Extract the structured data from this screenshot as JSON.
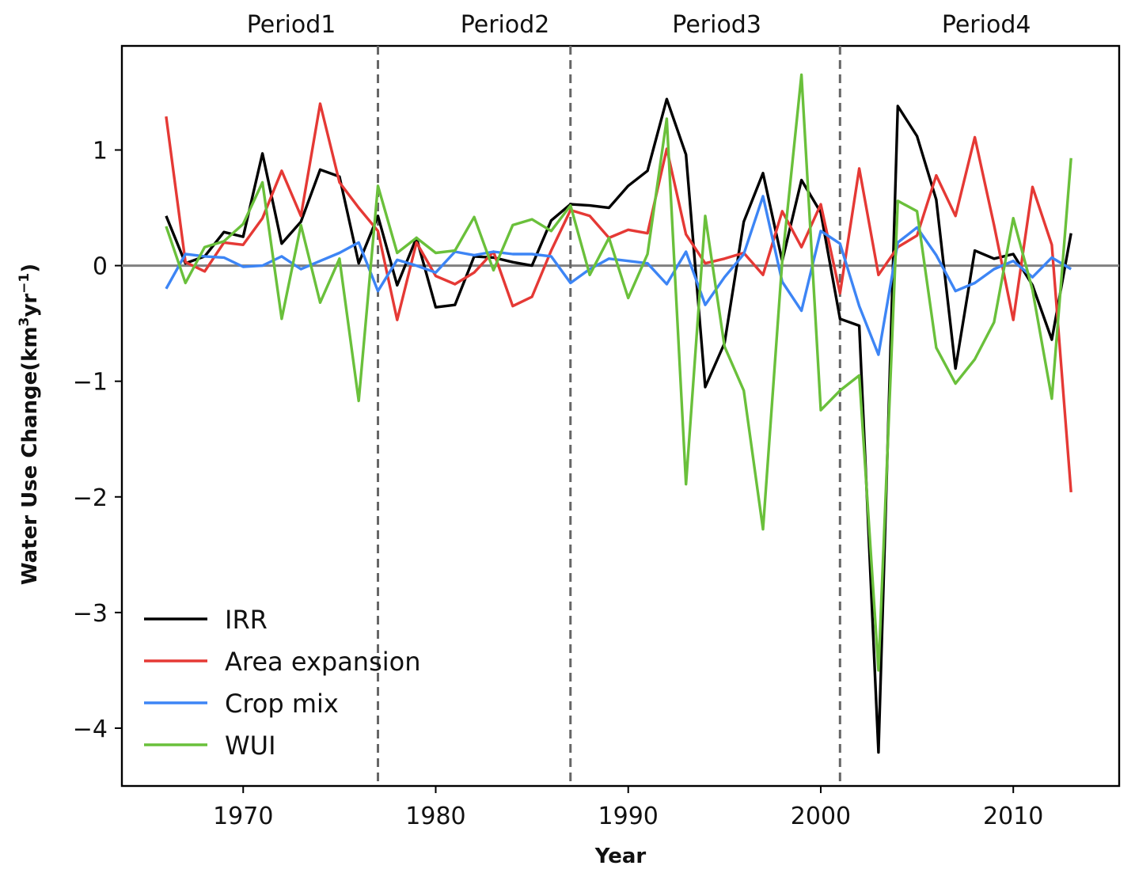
{
  "chart_data": {
    "type": "line",
    "title": "",
    "xlabel": "Year",
    "ylabel": "Water Use Change(km",
    "ylabel_sup1": "3",
    "ylabel_mid": "yr",
    "ylabel_sup2": "−1",
    "ylabel_end": ")",
    "xlim": [
      1963.7,
      2015.5
    ],
    "ylim": [
      -4.5,
      1.9
    ],
    "xticks": [
      1970,
      1980,
      1990,
      2000,
      2010
    ],
    "xtick_labels": [
      "1970",
      "1980",
      "1990",
      "2000",
      "2010"
    ],
    "yticks": [
      1,
      0,
      -1,
      -2,
      -3,
      -4
    ],
    "ytick_labels": [
      "1",
      "0",
      "−1",
      "−2",
      "−3",
      "−4"
    ],
    "zero_line": 0,
    "period_dividers": [
      1977,
      1987,
      2001
    ],
    "periods": [
      {
        "label": "Period1",
        "x": 1972.5
      },
      {
        "label": "Period2",
        "x": 1983.6
      },
      {
        "label": "Period3",
        "x": 1994.6
      },
      {
        "label": "Period4",
        "x": 2008.6
      }
    ],
    "legend_position": "lower-left",
    "x": [
      1966,
      1967,
      1968,
      1969,
      1970,
      1971,
      1972,
      1973,
      1974,
      1975,
      1976,
      1977,
      1978,
      1979,
      1980,
      1981,
      1982,
      1983,
      1984,
      1985,
      1986,
      1987,
      1988,
      1989,
      1990,
      1991,
      1992,
      1993,
      1994,
      1995,
      1996,
      1997,
      1998,
      1999,
      2000,
      2001,
      2002,
      2003,
      2004,
      2005,
      2006,
      2007,
      2008,
      2009,
      2010,
      2011,
      2012,
      2013
    ],
    "series": [
      {
        "name": "IRR",
        "color": "#000000",
        "values": [
          0.43,
          0.02,
          0.08,
          0.29,
          0.25,
          0.97,
          0.19,
          0.38,
          0.83,
          0.77,
          0.02,
          0.43,
          -0.17,
          0.24,
          -0.36,
          -0.34,
          0.08,
          0.07,
          0.03,
          0.0,
          0.39,
          0.53,
          0.52,
          0.5,
          0.69,
          0.82,
          1.44,
          0.96,
          -1.05,
          -0.67,
          0.38,
          0.8,
          0.04,
          0.74,
          0.46,
          -0.46,
          -0.52,
          -4.21,
          1.38,
          1.12,
          0.57,
          -0.89,
          0.13,
          0.06,
          0.1,
          -0.17,
          -0.64,
          0.28
        ]
      },
      {
        "name": "Area expansion",
        "color": "#e53935",
        "values": [
          1.29,
          0.03,
          -0.05,
          0.2,
          0.18,
          0.41,
          0.82,
          0.43,
          1.4,
          0.72,
          0.5,
          0.3,
          -0.47,
          0.2,
          -0.09,
          -0.16,
          -0.06,
          0.12,
          -0.35,
          -0.27,
          0.13,
          0.48,
          0.43,
          0.24,
          0.31,
          0.28,
          1.01,
          0.27,
          0.02,
          0.06,
          0.11,
          -0.08,
          0.47,
          0.16,
          0.53,
          -0.24,
          0.84,
          -0.08,
          0.16,
          0.26,
          0.78,
          0.43,
          1.11,
          0.35,
          -0.47,
          0.68,
          0.18,
          -1.96
        ]
      },
      {
        "name": "Crop mix",
        "color": "#3d85f5",
        "values": [
          -0.2,
          0.1,
          0.08,
          0.07,
          -0.01,
          0.0,
          0.08,
          -0.03,
          0.04,
          0.11,
          0.2,
          -0.22,
          0.05,
          0.0,
          -0.06,
          0.12,
          0.09,
          0.12,
          0.1,
          0.1,
          0.08,
          -0.15,
          -0.03,
          0.06,
          0.04,
          0.02,
          -0.16,
          0.12,
          -0.34,
          -0.1,
          0.1,
          0.6,
          -0.14,
          -0.39,
          0.3,
          0.19,
          -0.35,
          -0.77,
          0.2,
          0.33,
          0.09,
          -0.22,
          -0.15,
          -0.03,
          0.04,
          -0.1,
          0.07,
          -0.03
        ]
      },
      {
        "name": "WUI",
        "color": "#6ac03b",
        "values": [
          0.34,
          -0.15,
          0.16,
          0.21,
          0.36,
          0.72,
          -0.46,
          0.35,
          -0.32,
          0.06,
          -1.17,
          0.69,
          0.11,
          0.24,
          0.11,
          0.13,
          0.42,
          -0.04,
          0.35,
          0.4,
          0.3,
          0.52,
          -0.08,
          0.24,
          -0.28,
          0.1,
          1.27,
          -1.89,
          0.43,
          -0.7,
          -1.08,
          -2.28,
          0.04,
          1.65,
          -1.25,
          -1.08,
          -0.95,
          -3.5,
          0.56,
          0.47,
          -0.71,
          -1.02,
          -0.81,
          -0.49,
          0.41,
          -0.21,
          -1.15,
          0.93
        ]
      }
    ]
  }
}
